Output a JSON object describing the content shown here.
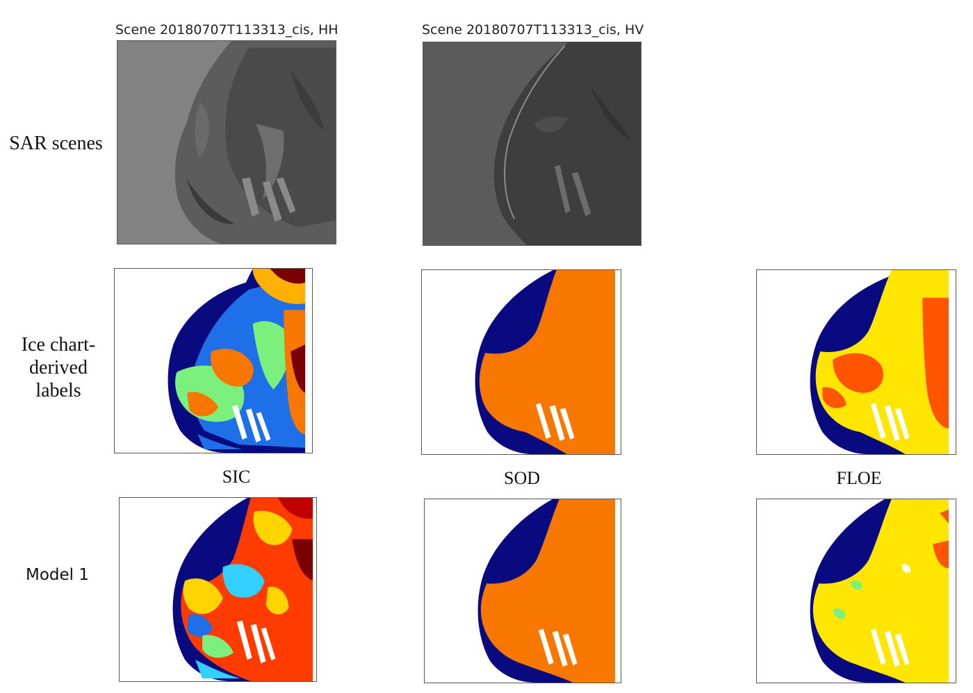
{
  "scene_titles": {
    "hh": "Scene 20180707T113313_cis, HH",
    "hv": "Scene 20180707T113313_cis, HV"
  },
  "row_labels": {
    "sar": "SAR scenes",
    "ice_chart_line1": "Ice chart-",
    "ice_chart_line2": "derived",
    "ice_chart_line3": "labels",
    "model": "Model 1"
  },
  "column_labels": {
    "sic": "SIC",
    "sod": "SOD",
    "floe": "FLOE"
  },
  "colors": {
    "navy": "#0a0a80",
    "orange": "#f77700",
    "yellow": "#ffe600",
    "red_orange": "#ff5500",
    "green": "#7cf07c",
    "blue": "#1f6fe8",
    "dark_red": "#7a0000",
    "sar_hh_bg": "#808080",
    "sar_hv_bg": "#5a5a5a"
  }
}
